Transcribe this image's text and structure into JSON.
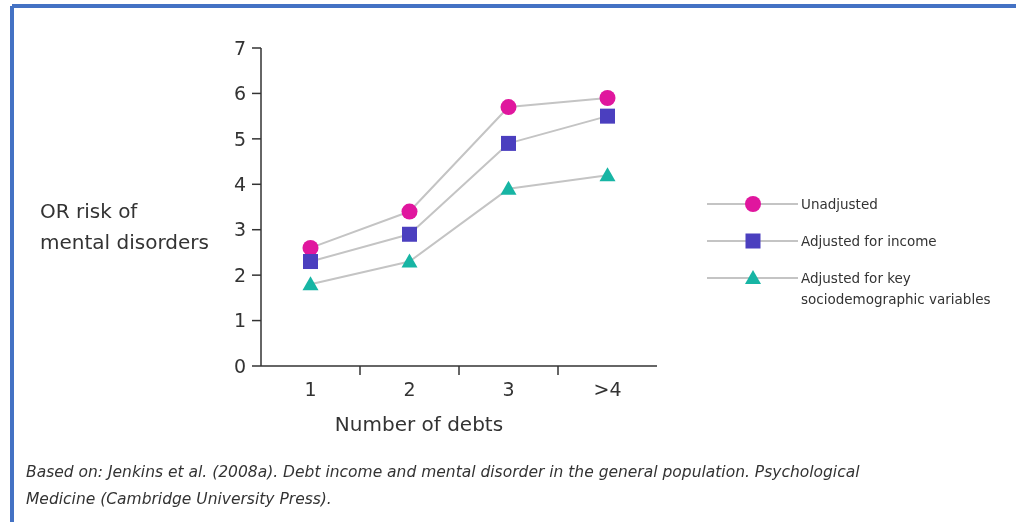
{
  "chart_data": {
    "type": "line",
    "xlabel": "Number of debts",
    "ylabel": "OR risk of\nmental disorders",
    "categories": [
      "1",
      "2",
      "3",
      ">4"
    ],
    "series": [
      {
        "name": "Unadjusted",
        "color": "#e0169e",
        "marker": "circle",
        "values": [
          2.6,
          3.4,
          5.7,
          5.9
        ]
      },
      {
        "name": "Adjusted for income",
        "color": "#4b3fbf",
        "marker": "square",
        "values": [
          2.3,
          2.9,
          4.9,
          5.5
        ]
      },
      {
        "name": "Adjusted for key\nsociodemographic variables",
        "color": "#17b5a4",
        "marker": "triangle",
        "values": [
          1.8,
          2.3,
          3.9,
          4.2
        ]
      }
    ],
    "ylim": [
      0,
      7
    ],
    "yticks": [
      0,
      1,
      2,
      3,
      4,
      5,
      6,
      7
    ],
    "grid": false,
    "legend": "right",
    "annotations": [
      "Based on: Jenkins et al. (2008a). Debt income and mental disorder in the general population. Psychological\nMedicine (Cambridge University Press)."
    ]
  }
}
